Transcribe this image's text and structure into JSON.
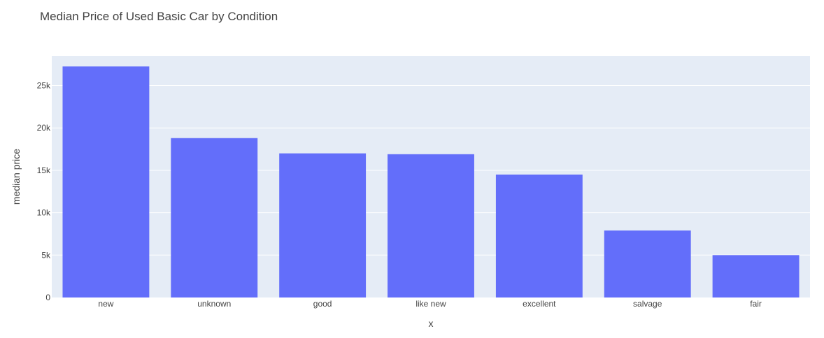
{
  "chart_data": {
    "type": "bar",
    "title": "Median Price of Used Basic Car by Condition",
    "xlabel": "x",
    "ylabel": "median price",
    "categories": [
      "new",
      "unknown",
      "good",
      "like new",
      "excellent",
      "salvage",
      "fair"
    ],
    "values": [
      27250,
      18800,
      17000,
      16900,
      14500,
      7900,
      5000
    ],
    "ylim": [
      0,
      28500
    ],
    "yticks": [
      0,
      5000,
      10000,
      15000,
      20000,
      25000
    ],
    "ytick_labels": [
      "0",
      "5k",
      "10k",
      "15k",
      "20k",
      "25k"
    ],
    "grid": true,
    "legend": "none",
    "colors": {
      "bar": "#636efa",
      "plot_bg": "#e5ecf6",
      "grid": "#ffffff"
    }
  }
}
